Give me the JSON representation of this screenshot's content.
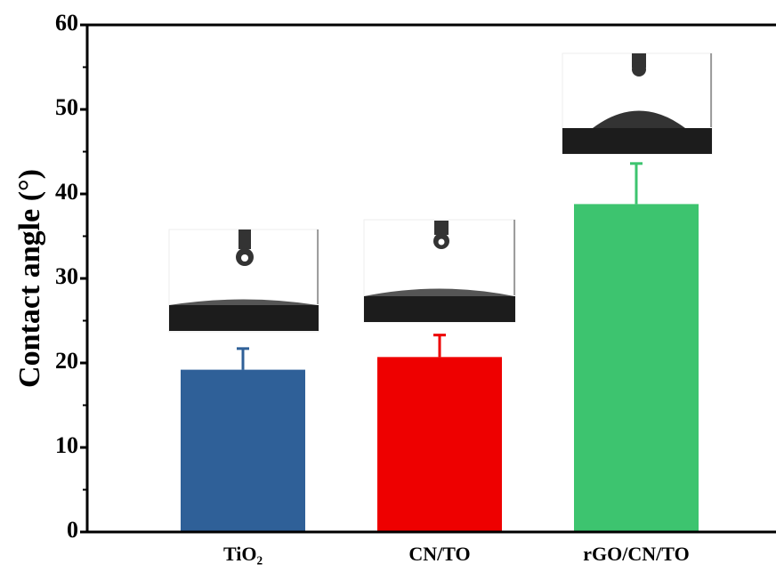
{
  "chart_data": {
    "type": "bar",
    "y_label": "Contact angle (°)",
    "categories": [
      "TiO₂",
      "CN/TO",
      "rGO/CN/TO"
    ],
    "values": [
      19.2,
      20.7,
      38.8
    ],
    "errors": [
      2.5,
      2.6,
      4.8
    ],
    "colors": [
      "#2f6098",
      "#ee0000",
      "#3dc46f"
    ],
    "ylim": [
      0,
      60
    ],
    "yticks": [
      0,
      10,
      20,
      30,
      40,
      50,
      60
    ],
    "yminorticks": [
      5,
      15,
      25,
      35,
      45,
      55
    ]
  }
}
